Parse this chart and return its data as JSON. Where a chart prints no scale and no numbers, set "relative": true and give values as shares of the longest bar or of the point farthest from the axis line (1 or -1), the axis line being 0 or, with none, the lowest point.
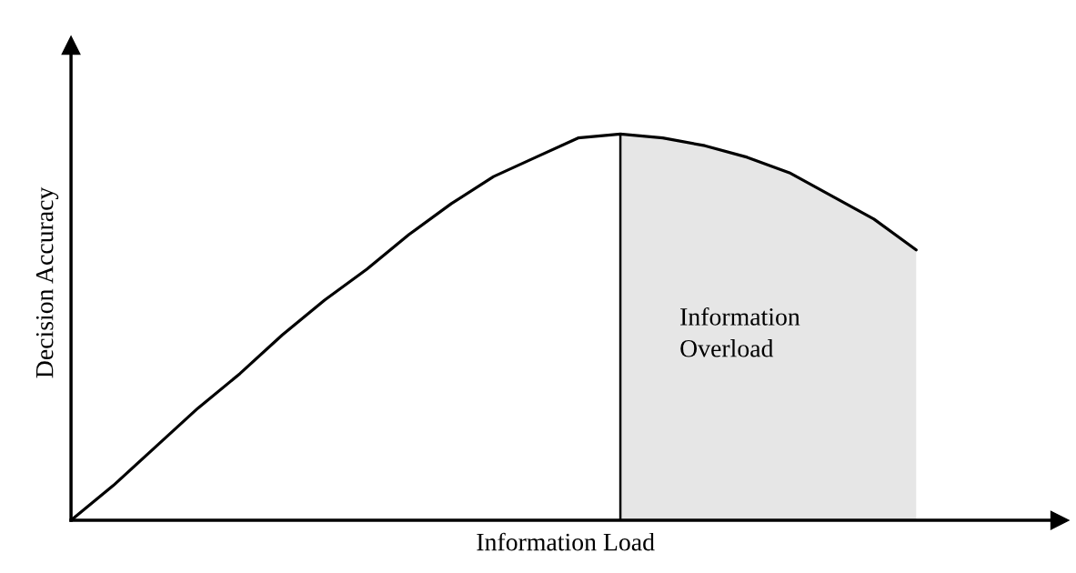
{
  "chart_data": {
    "type": "line",
    "relative": true,
    "xlabel": "Information Load",
    "ylabel": "Decision Accuracy",
    "categories": [
      null,
      null,
      null,
      null,
      null,
      null,
      null,
      null,
      null,
      null,
      null,
      null,
      null,
      null,
      null,
      null,
      null,
      null,
      null,
      null,
      null
    ],
    "series": [
      {
        "type": "area",
        "color": "#e6e6e6",
        "values": [
          null,
          null,
          null,
          null,
          null,
          null,
          null,
          null,
          null,
          null,
          null,
          null,
          null,
          1,
          0.99,
          0.97,
          0.94,
          0.9,
          0.84,
          0.78,
          0.7
        ]
      },
      {
        "color": "#000000",
        "values": [
          0,
          0.09,
          0.19,
          0.29,
          0.38,
          0.48,
          0.57,
          0.65,
          0.74,
          0.82,
          0.89,
          0.94,
          0.99,
          1,
          0.99,
          0.97,
          0.94,
          0.9,
          0.84,
          0.78,
          0.7
        ]
      }
    ],
    "annotations": [
      "Information\nOverload"
    ],
    "legend": false,
    "marker": "none",
    "line_style": "solid"
  }
}
